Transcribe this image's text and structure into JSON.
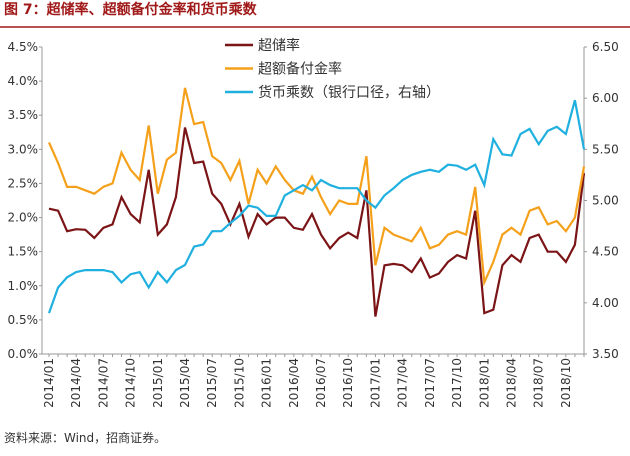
{
  "chart_data": {
    "type": "line",
    "title": "图 7：超储率、超额备付金率和货币乘数",
    "source": "资料来源：Wind，招商证券。",
    "categories": [
      "2014/01",
      null,
      null,
      "2014/04",
      null,
      null,
      "2014/07",
      null,
      null,
      "2014/10",
      null,
      null,
      "2015/01",
      null,
      null,
      "2015/04",
      null,
      null,
      "2015/07",
      null,
      null,
      "2015/10",
      null,
      null,
      "2016/01",
      null,
      null,
      "2016/04",
      null,
      null,
      "2016/07",
      null,
      null,
      "2016/10",
      null,
      null,
      "2017/01",
      null,
      null,
      "2017/04",
      null,
      null,
      "2017/07",
      null,
      null,
      "2017/10",
      null,
      null,
      "2018/01",
      null,
      null,
      "2018/04",
      null,
      null,
      "2018/07",
      null,
      null,
      "2018/10",
      null,
      null
    ],
    "series": [
      {
        "name": "超储率",
        "color": "#7b1416",
        "axis": "y",
        "values": [
          2.13,
          2.1,
          1.8,
          1.83,
          1.82,
          1.7,
          1.85,
          1.9,
          2.3,
          2.05,
          1.93,
          2.7,
          1.75,
          1.9,
          2.3,
          3.32,
          2.8,
          2.82,
          2.35,
          2.2,
          1.9,
          2.2,
          1.72,
          2.05,
          1.9,
          2.0,
          2.0,
          1.85,
          1.82,
          2.05,
          1.75,
          1.55,
          1.7,
          1.78,
          1.7,
          2.4,
          0.55,
          1.3,
          1.32,
          1.3,
          1.2,
          1.4,
          1.12,
          1.18,
          1.35,
          1.45,
          1.4,
          2.1,
          0.6,
          0.65,
          1.3,
          1.45,
          1.35,
          1.7,
          1.75,
          1.5,
          1.5,
          1.35,
          1.6,
          2.65
        ]
      },
      {
        "name": "超额备付金率",
        "color": "#f5a01a",
        "axis": "y",
        "values": [
          3.1,
          2.8,
          2.45,
          2.45,
          2.4,
          2.35,
          2.45,
          2.5,
          2.95,
          2.7,
          2.55,
          3.35,
          2.35,
          2.85,
          2.95,
          3.9,
          3.37,
          3.4,
          2.9,
          2.8,
          2.55,
          2.83,
          2.2,
          2.7,
          2.5,
          2.75,
          2.55,
          2.4,
          2.35,
          2.6,
          2.3,
          2.05,
          2.25,
          2.2,
          2.2,
          2.9,
          1.3,
          1.85,
          1.75,
          1.7,
          1.65,
          1.85,
          1.55,
          1.6,
          1.75,
          1.8,
          1.75,
          2.45,
          1.05,
          1.35,
          1.75,
          1.85,
          1.75,
          2.1,
          2.15,
          1.9,
          1.95,
          1.8,
          2.0,
          2.75
        ]
      },
      {
        "name": "货币乘数（银行口径，右轴）",
        "color": "#1fb0e0",
        "axis": "y2",
        "values": [
          3.9,
          4.15,
          4.25,
          4.3,
          4.32,
          4.32,
          4.32,
          4.3,
          4.2,
          4.28,
          4.3,
          4.15,
          4.3,
          4.2,
          4.32,
          4.37,
          4.55,
          4.57,
          4.7,
          4.7,
          4.78,
          4.85,
          4.95,
          4.93,
          4.85,
          4.85,
          5.05,
          5.1,
          5.15,
          5.1,
          5.2,
          5.15,
          5.12,
          5.12,
          5.12,
          5.0,
          4.93,
          5.05,
          5.12,
          5.2,
          5.25,
          5.28,
          5.3,
          5.28,
          5.35,
          5.34,
          5.3,
          5.35,
          5.15,
          5.6,
          5.45,
          5.44,
          5.65,
          5.7,
          5.55,
          5.68,
          5.72,
          5.65,
          5.98,
          5.5
        ]
      }
    ],
    "ylim": [
      0,
      4.5
    ],
    "yticks": [
      {
        "value": 0,
        "label": "0.0%"
      },
      {
        "value": 0.5,
        "label": "0.5%"
      },
      {
        "value": 1,
        "label": "1.0%"
      },
      {
        "value": 1.5,
        "label": "1.5%"
      },
      {
        "value": 2,
        "label": "2.0%"
      },
      {
        "value": 2.5,
        "label": "2.5%"
      },
      {
        "value": 3,
        "label": "3.0%"
      },
      {
        "value": 3.5,
        "label": "3.5%"
      },
      {
        "value": 4,
        "label": "4.0%"
      },
      {
        "value": 4.5,
        "label": "4.5%"
      }
    ],
    "y2lim": [
      3.5,
      6.5
    ],
    "y2ticks": [
      {
        "value": 3.5,
        "label": "3.50"
      },
      {
        "value": 4,
        "label": "4.00"
      },
      {
        "value": 4.5,
        "label": "4.50"
      },
      {
        "value": 5,
        "label": "5.00"
      },
      {
        "value": 5.5,
        "label": "5.50"
      },
      {
        "value": 6,
        "label": "6.00"
      },
      {
        "value": 6.5,
        "label": "6.50"
      }
    ],
    "grid": false,
    "legend": "top"
  }
}
